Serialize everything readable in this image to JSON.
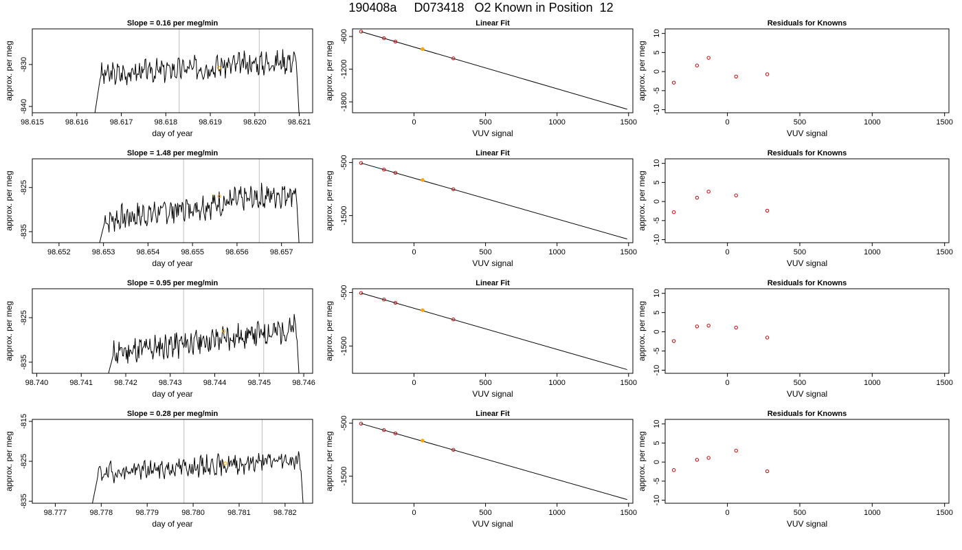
{
  "title": "190408a     D073418   O2 Known in Position  12",
  "colors": {
    "line": "#000000",
    "grid": "#bebebe",
    "highlight": "#ffa500",
    "residual": "#cc0000",
    "fitpoint": "#cc0000"
  },
  "chart_data": [
    {
      "type": "line",
      "title": "Slope =  0.16  per meg/min",
      "xlabel": "day of year",
      "ylabel": "approx. per meg",
      "xlim": [
        98.615,
        98.6213
      ],
      "ylim": [
        -841.5,
        -821.5
      ],
      "xticks": [
        "98.615",
        "98.616",
        "98.617",
        "98.618",
        "98.619",
        "98.620",
        "98.621"
      ],
      "xtick_values": [
        98.615,
        98.616,
        98.617,
        98.618,
        98.619,
        98.62,
        98.621
      ],
      "yticks": [
        "-840",
        "-830"
      ],
      "ytick_values": [
        -840,
        -830
      ],
      "vlines": [
        98.6183,
        98.6201
      ],
      "highlight": {
        "x": 98.6192,
        "y": -830.8
      },
      "x_start": 98.6164,
      "x_end": 98.621,
      "y_start": -842,
      "y_end": -843,
      "y_base": -832.5,
      "y_top": -829.0,
      "amplitude": 2.2,
      "seed": 3
    },
    {
      "type": "line",
      "title": "Slope =  1.48  per meg/min",
      "xlabel": "day of year",
      "ylabel": "approx. per meg",
      "xlim": [
        98.6514,
        98.6577
      ],
      "ylim": [
        -837.5,
        -818.5
      ],
      "xticks": [
        "98.652",
        "98.653",
        "98.654",
        "98.655",
        "98.656",
        "98.657"
      ],
      "xtick_values": [
        98.652,
        98.653,
        98.654,
        98.655,
        98.656,
        98.657
      ],
      "yticks": [
        "-835",
        "-825"
      ],
      "ytick_values": [
        -835,
        -825
      ],
      "vlines": [
        98.6548,
        98.6565
      ],
      "highlight": {
        "x": 98.6556,
        "y": -827.0
      },
      "x_start": 98.6529,
      "x_end": 98.6574,
      "y_start": -838,
      "y_end": -839,
      "y_base": -832.5,
      "y_top": -826.0,
      "amplitude": 2.3,
      "seed": 7
    },
    {
      "type": "line",
      "title": "Slope =  0.95  per meg/min",
      "xlabel": "day of year",
      "ylabel": "approx. per meg",
      "xlim": [
        98.7399,
        98.7462
      ],
      "ylim": [
        -837.5,
        -818.5
      ],
      "xticks": [
        "98.740",
        "98.741",
        "98.742",
        "98.743",
        "98.744",
        "98.745",
        "98.746"
      ],
      "xtick_values": [
        98.74,
        98.741,
        98.742,
        98.743,
        98.744,
        98.745,
        98.746
      ],
      "yticks": [
        "-835",
        "-825"
      ],
      "ytick_values": [
        -835,
        -825
      ],
      "vlines": [
        98.7433,
        98.7451
      ],
      "highlight": {
        "x": 98.7442,
        "y": -828.0
      },
      "x_start": 98.7416,
      "x_end": 98.7459,
      "y_start": -838,
      "y_end": -839,
      "y_base": -833.0,
      "y_top": -827.5,
      "amplitude": 2.4,
      "seed": 11
    },
    {
      "type": "line",
      "title": "Slope =  0.28  per meg/min",
      "xlabel": "day of year",
      "ylabel": "approx. per meg",
      "xlim": [
        98.7765,
        98.7826
      ],
      "ylim": [
        -835.5,
        -814.5
      ],
      "xticks": [
        "98.777",
        "98.778",
        "98.779",
        "98.780",
        "98.781",
        "98.782"
      ],
      "xtick_values": [
        98.777,
        98.778,
        98.779,
        98.78,
        98.781,
        98.782
      ],
      "yticks": [
        "-815",
        "-825",
        "-835"
      ],
      "ytick_values": [
        -815,
        -825,
        -835
      ],
      "vlines": [
        98.7798,
        98.7815
      ],
      "highlight": {
        "x": 98.7807,
        "y": -825.5
      },
      "x_start": 98.7778,
      "x_end": 98.7824,
      "y_start": -836,
      "y_end": -837,
      "y_base": -828.0,
      "y_top": -824.5,
      "amplitude": 2.0,
      "seed": 19
    },
    {
      "type": "scatter",
      "title": "Linear Fit",
      "xlabel": "VUV signal",
      "ylabel": "approx. per meg",
      "xlim": [
        -430,
        1530
      ],
      "ylim": [
        -2000,
        -460
      ],
      "xticks": [
        "0",
        "500",
        "1000",
        "1500"
      ],
      "xtick_values": [
        0,
        500,
        1000,
        1500
      ],
      "yticks": [
        "-600",
        "-1200",
        "-1800"
      ],
      "ytick_values": [
        -600,
        -1200,
        -1800
      ],
      "line": {
        "x": [
          -370,
          1490
        ],
        "y": [
          -510,
          -1935
        ]
      },
      "x": [
        -370,
        -210,
        -130,
        60,
        275
      ],
      "y": [
        -510,
        -632,
        -693,
        -830,
        -1001
      ],
      "highlight_index": 3
    },
    {
      "type": "scatter",
      "title": "Linear Fit",
      "xlabel": "VUV signal",
      "ylabel": "approx. per meg",
      "xlim": [
        -430,
        1530
      ],
      "ylim": [
        -2010,
        -430
      ],
      "xticks": [
        "0",
        "500",
        "1000",
        "1500"
      ],
      "xtick_values": [
        0,
        500,
        1000,
        1500
      ],
      "yticks": [
        "-500",
        "-1500"
      ],
      "ytick_values": [
        -500,
        -1500
      ],
      "line": {
        "x": [
          -370,
          1490
        ],
        "y": [
          -510,
          -1940
        ]
      },
      "x": [
        -370,
        -210,
        -130,
        60,
        275
      ],
      "y": [
        -510,
        -632,
        -693,
        -830,
        -1003
      ],
      "highlight_index": 3
    },
    {
      "type": "scatter",
      "title": "Linear Fit",
      "xlabel": "VUV signal",
      "ylabel": "approx. per meg",
      "xlim": [
        -430,
        1530
      ],
      "ylim": [
        -2010,
        -430
      ],
      "xticks": [
        "0",
        "500",
        "1000",
        "1500"
      ],
      "xtick_values": [
        0,
        500,
        1000,
        1500
      ],
      "yticks": [
        "-500",
        "-1500"
      ],
      "ytick_values": [
        -500,
        -1500
      ],
      "line": {
        "x": [
          -370,
          1490
        ],
        "y": [
          -510,
          -1940
        ]
      },
      "x": [
        -370,
        -210,
        -130,
        60,
        275
      ],
      "y": [
        -510,
        -632,
        -693,
        -830,
        -1003
      ],
      "highlight_index": 3
    },
    {
      "type": "scatter",
      "title": "Linear Fit",
      "xlabel": "VUV signal",
      "ylabel": "approx. per meg",
      "xlim": [
        -430,
        1530
      ],
      "ylim": [
        -2010,
        -430
      ],
      "xticks": [
        "0",
        "500",
        "1000",
        "1500"
      ],
      "xtick_values": [
        0,
        500,
        1000,
        1500
      ],
      "yticks": [
        "-500",
        "-1500"
      ],
      "ytick_values": [
        -500,
        -1500
      ],
      "line": {
        "x": [
          -370,
          1490
        ],
        "y": [
          -510,
          -1940
        ]
      },
      "x": [
        -370,
        -210,
        -130,
        60,
        275
      ],
      "y": [
        -510,
        -632,
        -693,
        -830,
        -1003
      ],
      "highlight_index": 3
    },
    {
      "type": "scatter",
      "title": "Residuals for Knowns",
      "xlabel": "VUV signal",
      "ylabel": "approx. per meg",
      "xlim": [
        -430,
        1530
      ],
      "ylim": [
        -10.8,
        11.2
      ],
      "xticks": [
        "0",
        "500",
        "1000",
        "1500"
      ],
      "xtick_values": [
        0,
        500,
        1000,
        1500
      ],
      "yticks": [
        "-10",
        "-5",
        "0",
        "5",
        "10"
      ],
      "ytick_values": [
        -10,
        -5,
        0,
        5,
        10
      ],
      "x": [
        -370,
        -210,
        -130,
        60,
        275
      ],
      "y": [
        -2.9,
        1.6,
        3.6,
        -1.3,
        -0.7
      ]
    },
    {
      "type": "scatter",
      "title": "Residuals for Knowns",
      "xlabel": "VUV signal",
      "ylabel": "approx. per meg",
      "xlim": [
        -430,
        1530
      ],
      "ylim": [
        -10.8,
        11.2
      ],
      "xticks": [
        "0",
        "500",
        "1000",
        "1500"
      ],
      "xtick_values": [
        0,
        500,
        1000,
        1500
      ],
      "yticks": [
        "-10",
        "-5",
        "0",
        "5",
        "10"
      ],
      "ytick_values": [
        -10,
        -5,
        0,
        5,
        10
      ],
      "x": [
        -370,
        -210,
        -130,
        60,
        275
      ],
      "y": [
        -2.8,
        1.0,
        2.6,
        1.6,
        -2.4
      ]
    },
    {
      "type": "scatter",
      "title": "Residuals for Knowns",
      "xlabel": "VUV signal",
      "ylabel": "approx. per meg",
      "xlim": [
        -430,
        1530
      ],
      "ylim": [
        -10.8,
        11.2
      ],
      "xticks": [
        "0",
        "500",
        "1000",
        "1500"
      ],
      "xtick_values": [
        0,
        500,
        1000,
        1500
      ],
      "yticks": [
        "-10",
        "-5",
        "0",
        "5",
        "10"
      ],
      "ytick_values": [
        -10,
        -5,
        0,
        5,
        10
      ],
      "x": [
        -370,
        -210,
        -130,
        60,
        275
      ],
      "y": [
        -2.4,
        1.4,
        1.6,
        1.1,
        -1.5
      ]
    },
    {
      "type": "scatter",
      "title": "Residuals for Knowns",
      "xlabel": "VUV signal",
      "ylabel": "approx. per meg",
      "xlim": [
        -430,
        1530
      ],
      "ylim": [
        -10.8,
        11.2
      ],
      "xticks": [
        "0",
        "500",
        "1000",
        "1500"
      ],
      "xtick_values": [
        0,
        500,
        1000,
        1500
      ],
      "yticks": [
        "-10",
        "-5",
        "0",
        "5",
        "10"
      ],
      "ytick_values": [
        -10,
        -5,
        0,
        5,
        10
      ],
      "x": [
        -370,
        -210,
        -130,
        60,
        275
      ],
      "y": [
        -2.1,
        0.6,
        1.1,
        3.0,
        -2.4
      ]
    }
  ]
}
